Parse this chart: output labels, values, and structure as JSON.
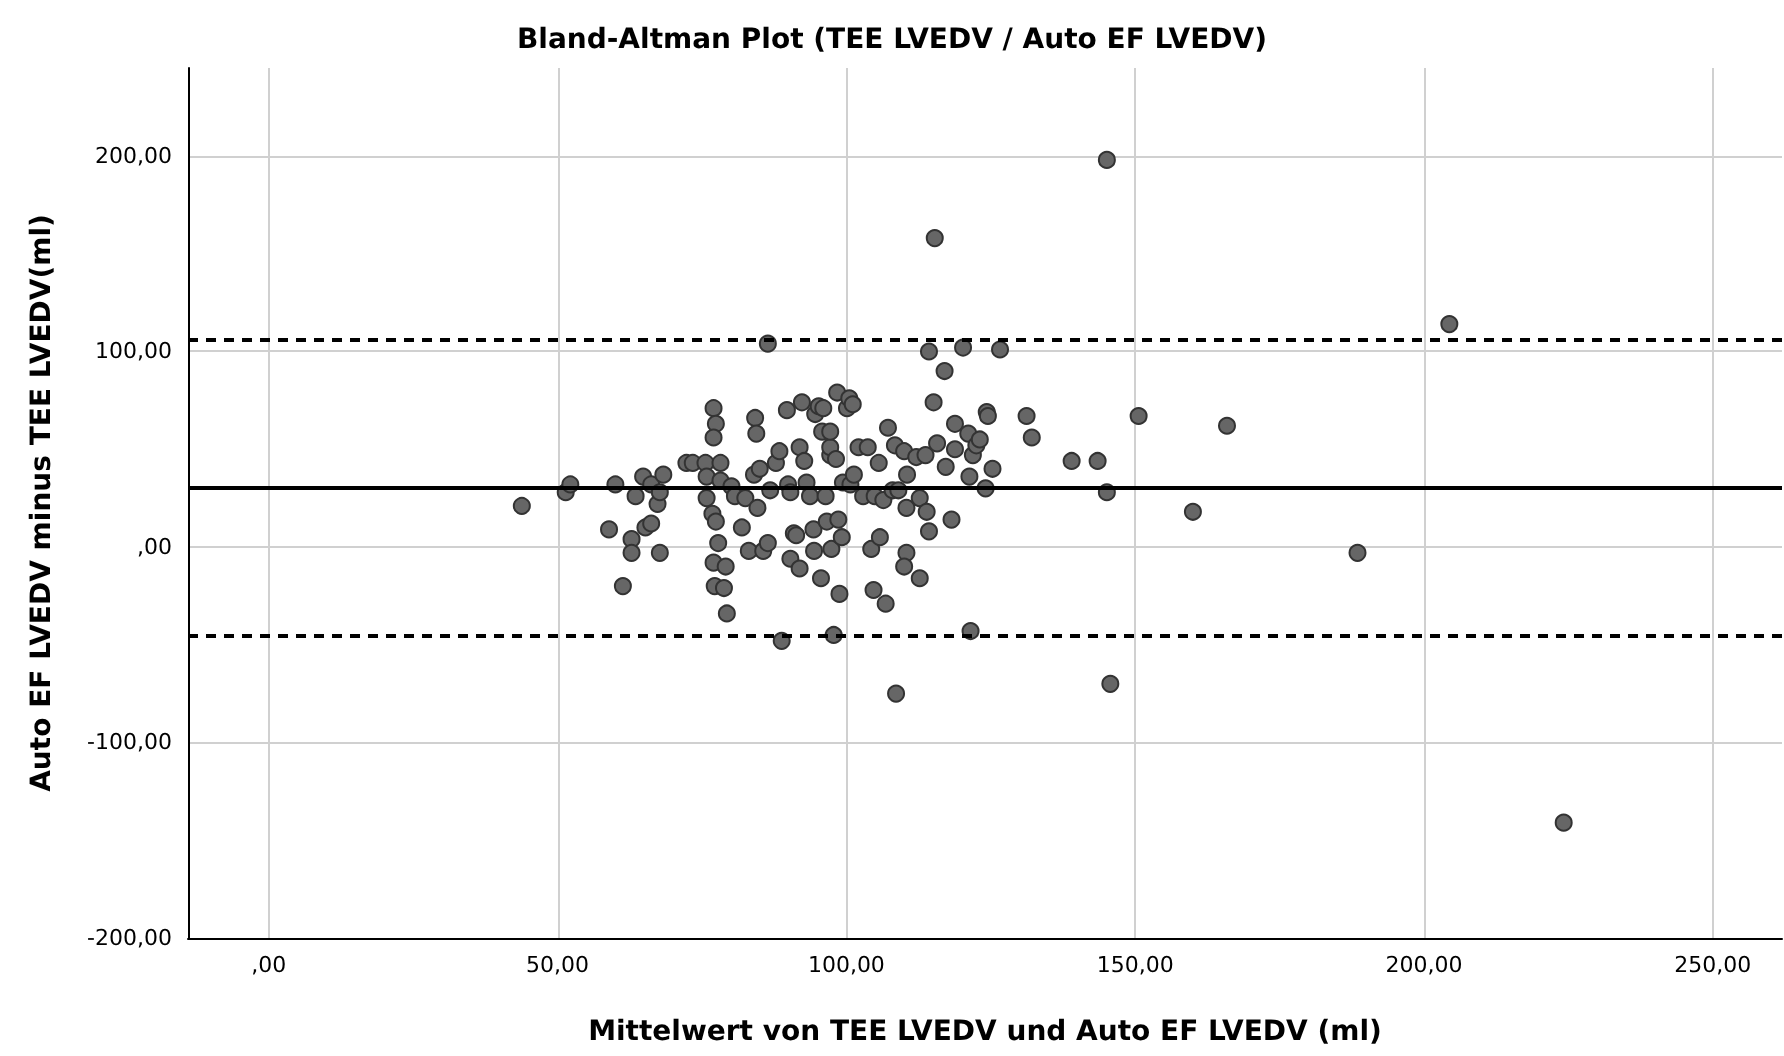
{
  "chart_data": {
    "type": "scatter",
    "title": "Bland-Altman Plot (TEE LVEDV / Auto EF LVEDV)",
    "xlabel": "Mittelwert von TEE LVEDV und Auto EF LVEDV (ml)",
    "ylabel": "Auto EF LVEDV minus TEE LVEDV(ml)",
    "xlim": [
      -14,
      262
    ],
    "ylim": [
      -200,
      245
    ],
    "xticks": [
      {
        "value": 0,
        "label": ",00"
      },
      {
        "value": 50,
        "label": "50,00"
      },
      {
        "value": 100,
        "label": "100,00"
      },
      {
        "value": 150,
        "label": "150,00"
      },
      {
        "value": 200,
        "label": "200,00"
      },
      {
        "value": 250,
        "label": "250,00"
      }
    ],
    "yticks": [
      {
        "value": -200,
        "label": "-200,00"
      },
      {
        "value": -100,
        "label": "-100,00"
      },
      {
        "value": 0,
        "label": ",00"
      },
      {
        "value": 100,
        "label": "100,00"
      },
      {
        "value": 200,
        "label": "200,00"
      }
    ],
    "grid": true,
    "marker": "circle",
    "ref_lines": [
      {
        "axis": "y",
        "value": 30.5,
        "color": "#000000",
        "line_style": "solid"
      },
      {
        "axis": "y",
        "value": 106,
        "color": "#000000",
        "line_style": "dashed"
      },
      {
        "axis": "y",
        "value": -45.4,
        "color": "#000000",
        "line_style": "dashed"
      }
    ],
    "series": [
      {
        "color": "#666666",
        "x": [
          43.8,
          51.4,
          52.2,
          58.9,
          60,
          61.3,
          62.8,
          62.8,
          63.5,
          64.8,
          65.2,
          66.2,
          66.2,
          67.3,
          67.7,
          67.7,
          68.3,
          72.3,
          73.4,
          75.6,
          75.8,
          75.8,
          77,
          77.4,
          77,
          76.8,
          77.4,
          77,
          77.2,
          78.2,
          78.2,
          77.8,
          78.8,
          79.1,
          79.3,
          80.1,
          80.7,
          81.9,
          82.5,
          83.1,
          84,
          84.2,
          84.4,
          84.6,
          85,
          85.6,
          86.4,
          86.4,
          86.8,
          87.8,
          88.4,
          88.8,
          89.7,
          89.9,
          90.3,
          90.3,
          90.9,
          91.3,
          91.9,
          91.9,
          92.3,
          92.7,
          93.1,
          93.7,
          94.3,
          94.4,
          94.6,
          95.2,
          95.6,
          95.8,
          96,
          96.4,
          96.6,
          97.2,
          97.2,
          97.2,
          97.4,
          97.8,
          98.2,
          98.4,
          98.6,
          98.8,
          99.2,
          99.4,
          100.1,
          100.5,
          100.7,
          101.1,
          101.3,
          102.1,
          102.9,
          103.7,
          104.3,
          104.7,
          104.9,
          105.6,
          105.8,
          106.4,
          106.8,
          107.2,
          108,
          108.4,
          108.6,
          109,
          110,
          110.4,
          110.4,
          110,
          110.5,
          112.1,
          112.7,
          112.7,
          113.7,
          113.9,
          114.3,
          114.3,
          115.1,
          115.3,
          115.7,
          117,
          117.2,
          118.2,
          118.8,
          118.8,
          120.2,
          121.1,
          121.3,
          121.5,
          121.9,
          122.5,
          123.1,
          124.1,
          124.3,
          124.5,
          125.3,
          126.6,
          131.2,
          132.1,
          139,
          143.5,
          145.1,
          145.1,
          145.7,
          150.6,
          160,
          165.9,
          188.5,
          204.4,
          224.2
        ],
        "values": [
          21,
          28,
          32,
          9,
          32,
          -20,
          4,
          -3,
          26,
          36,
          10,
          12,
          32,
          22,
          28,
          -3,
          37,
          43,
          43,
          43,
          36,
          25,
          71,
          63,
          56,
          17,
          13,
          -8,
          -20,
          34,
          43,
          2,
          -21,
          -10,
          -34,
          31,
          26,
          10,
          25,
          -2,
          37,
          66,
          58,
          20,
          40,
          -2,
          104,
          2,
          29,
          43,
          49,
          -48,
          70,
          32,
          28,
          -6,
          7,
          6,
          -11,
          51,
          74,
          44,
          33,
          26,
          9,
          -2,
          68,
          72,
          -16,
          59,
          71,
          26,
          13,
          47,
          51,
          59,
          -1,
          -45,
          45,
          79,
          14,
          -24,
          5,
          33,
          71,
          76,
          32,
          73,
          37,
          51,
          26,
          51,
          -1,
          -22,
          26,
          43,
          5,
          24,
          -29,
          61,
          29,
          52,
          -75,
          29,
          49,
          -3,
          20,
          -10,
          37,
          46,
          25,
          -16,
          47,
          18,
          100,
          8,
          74,
          158,
          53,
          90,
          41,
          14,
          63,
          50,
          102,
          58,
          36,
          -43,
          47,
          52,
          55,
          30,
          69,
          67,
          40,
          101,
          67,
          56,
          44,
          44,
          198,
          28,
          -70,
          67,
          18,
          62,
          -3,
          114,
          -141
        ]
      }
    ]
  }
}
